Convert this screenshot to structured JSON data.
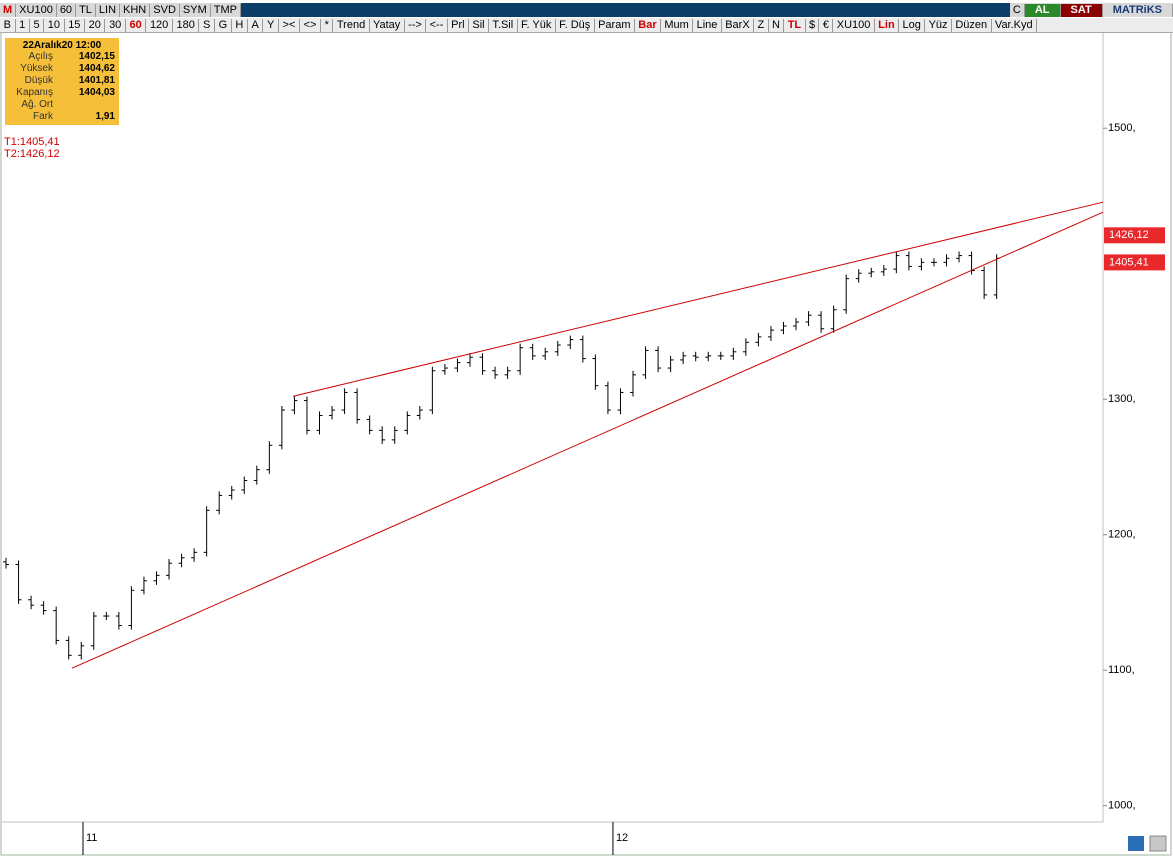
{
  "toolbar": {
    "row1": [
      "M",
      "XU100",
      "60",
      "TL",
      "LIN",
      "KHN",
      "SVD",
      "SYM",
      "TMP"
    ],
    "row1_right": [
      "C",
      "AL",
      "SAT",
      "MATRiKS"
    ],
    "row2": [
      "B",
      "1",
      "5",
      "10",
      "15",
      "20",
      "30",
      "60",
      "120",
      "180",
      "S",
      "G",
      "H",
      "A",
      "Y",
      "><",
      "<>",
      "*",
      "Trend",
      "Yatay",
      "-->",
      "<--",
      "Prl",
      "Sil",
      "T.Sil",
      "F. Yük",
      "F. Düş",
      "Param",
      "Bar",
      "Mum",
      "Line",
      "BarX",
      "Z",
      "N",
      "TL",
      "$",
      "€",
      "XU100",
      "Lin",
      "Log",
      "Yüz",
      "Düzen",
      "Var.Kyd"
    ],
    "row2_active": [
      7,
      28,
      34,
      38
    ]
  },
  "info_box": {
    "date": "22Aralık20 12:00",
    "rows": [
      [
        "Açılış",
        "1402,15"
      ],
      [
        "Yüksek",
        "1404,62"
      ],
      [
        "Düşük",
        "1401,81"
      ],
      [
        "Kapanış",
        "1404,03"
      ],
      [
        "Ağ. Ort",
        null
      ],
      [
        "Fark",
        "1,91"
      ]
    ]
  },
  "annotations": [
    "T1:1405,41",
    "T2:1426,12"
  ],
  "chart_data": {
    "type": "ohlc",
    "open": [
      1180,
      1178,
      1152,
      1148,
      1144,
      1122,
      1111,
      1118,
      1140,
      1140,
      1133,
      1159,
      1166,
      1170,
      1179,
      1183,
      1187,
      1218,
      1229,
      1233,
      1240,
      1248,
      1266,
      1292,
      1299,
      1277,
      1288,
      1292,
      1305,
      1285,
      1277,
      1270,
      1277,
      1288,
      1292,
      1321,
      1323,
      1327,
      1331,
      1321,
      1318,
      1321,
      1338,
      1332,
      1335,
      1340,
      1344,
      1330,
      1310,
      1292,
      1305,
      1318,
      1336,
      1323,
      1329,
      1332,
      1331,
      1332,
      1332,
      1335,
      1342,
      1346,
      1351,
      1354,
      1357,
      1362,
      1352,
      1366,
      1389,
      1393,
      1394,
      1396,
      1406,
      1398,
      1401,
      1401,
      1404,
      1406,
      1395,
      1377
    ],
    "high": [
      1183,
      1181,
      1155,
      1151,
      1147,
      1125,
      1121,
      1143,
      1143,
      1143,
      1162,
      1169,
      1173,
      1182,
      1186,
      1190,
      1221,
      1232,
      1236,
      1243,
      1251,
      1269,
      1295,
      1302,
      1302,
      1291,
      1295,
      1308,
      1308,
      1288,
      1280,
      1280,
      1291,
      1295,
      1324,
      1326,
      1330,
      1334,
      1334,
      1324,
      1324,
      1341,
      1341,
      1338,
      1343,
      1347,
      1347,
      1333,
      1313,
      1308,
      1321,
      1339,
      1339,
      1332,
      1335,
      1335,
      1335,
      1335,
      1338,
      1345,
      1349,
      1354,
      1357,
      1360,
      1365,
      1365,
      1369,
      1392,
      1396,
      1397,
      1399,
      1409,
      1409,
      1404,
      1404,
      1407,
      1409,
      1409,
      1398,
      1407
    ],
    "low": [
      1175,
      1149,
      1145,
      1141,
      1119,
      1108,
      1108,
      1115,
      1137,
      1130,
      1130,
      1156,
      1163,
      1167,
      1176,
      1180,
      1184,
      1215,
      1226,
      1230,
      1237,
      1245,
      1263,
      1289,
      1274,
      1274,
      1285,
      1289,
      1282,
      1274,
      1267,
      1267,
      1274,
      1285,
      1289,
      1318,
      1320,
      1324,
      1318,
      1315,
      1315,
      1318,
      1329,
      1329,
      1332,
      1337,
      1327,
      1307,
      1289,
      1289,
      1302,
      1315,
      1320,
      1320,
      1326,
      1328,
      1328,
      1329,
      1329,
      1332,
      1339,
      1343,
      1348,
      1351,
      1354,
      1349,
      1349,
      1363,
      1386,
      1390,
      1391,
      1393,
      1395,
      1395,
      1398,
      1398,
      1401,
      1392,
      1374,
      1374
    ],
    "close": [
      1178,
      1152,
      1148,
      1144,
      1122,
      1111,
      1118,
      1140,
      1140,
      1133,
      1159,
      1166,
      1170,
      1179,
      1183,
      1187,
      1218,
      1229,
      1233,
      1240,
      1248,
      1266,
      1292,
      1299,
      1277,
      1288,
      1292,
      1305,
      1285,
      1277,
      1270,
      1277,
      1288,
      1292,
      1321,
      1323,
      1327,
      1331,
      1321,
      1318,
      1321,
      1338,
      1332,
      1335,
      1340,
      1344,
      1330,
      1310,
      1292,
      1305,
      1318,
      1336,
      1323,
      1329,
      1332,
      1331,
      1332,
      1332,
      1335,
      1342,
      1346,
      1351,
      1354,
      1357,
      1362,
      1352,
      1366,
      1389,
      1393,
      1394,
      1396,
      1406,
      1398,
      1401,
      1401,
      1404,
      1406,
      1395,
      1377,
      1404
    ],
    "color": "#000000",
    "xlim": [
      -0.24,
      87.48
    ],
    "xticks": [
      {
        "value": 6.14,
        "label": "11"
      },
      {
        "value": 48.4,
        "label": "12"
      }
    ],
    "ylim": [
      988,
      1571
    ],
    "yticks": [
      {
        "value": 1000,
        "label": "1000,"
      },
      {
        "value": 1100,
        "label": "1100,"
      },
      {
        "value": 1200,
        "label": "1200,"
      },
      {
        "value": 1300,
        "label": "1300,"
      },
      {
        "value": 1500,
        "label": "1500,"
      }
    ],
    "trendlines": [
      {
        "color": "#cc0000",
        "x": [
          5.26,
          87.48
        ],
        "y": [
          1101.5,
          1438
        ]
      },
      {
        "color": "#cc0000",
        "x": [
          22.9,
          87.48
        ],
        "y": [
          1302.2,
          1445.4
        ]
      }
    ],
    "price_labels": [
      {
        "value": 1426.12,
        "label": "1426,12",
        "color": "#e8282b"
      },
      {
        "value": 1405.41,
        "label": "1405,41",
        "color": "#e8282b"
      }
    ]
  }
}
